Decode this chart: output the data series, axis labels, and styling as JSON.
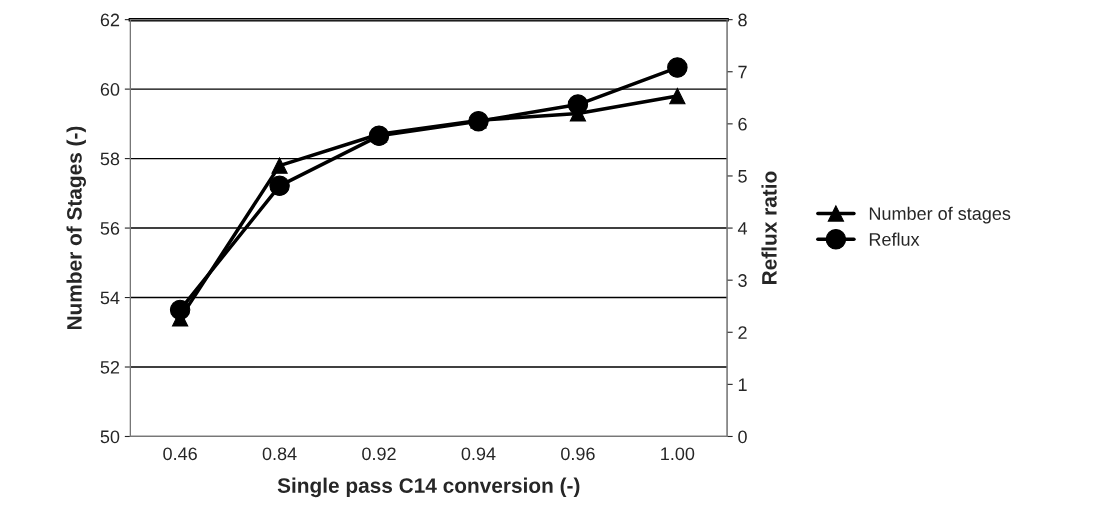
{
  "chart_data": {
    "type": "line",
    "xlabel": "Single pass C14 conversion (-)",
    "ylabel": "Number of Stages (-)",
    "y2label": "Reflux ratio",
    "categories": [
      "0.46",
      "0.84",
      "0.92",
      "0.94",
      "0.96",
      "1.00"
    ],
    "series": [
      {
        "name": "Number of stages",
        "color": "#000000",
        "marker": "triangle",
        "values": [
          53.4,
          57.8,
          58.7,
          59.1,
          59.3,
          59.8
        ]
      },
      {
        "name": "Reflux",
        "color": "#000000",
        "marker": "circle",
        "axis": "y2",
        "values": [
          2.43,
          4.81,
          5.77,
          6.05,
          6.37,
          7.08
        ]
      }
    ],
    "ylim": [
      50,
      62
    ],
    "yticks": [
      50,
      52,
      54,
      56,
      58,
      60,
      62
    ],
    "y2lim": [
      0,
      8
    ],
    "y2ticks": [
      0,
      1,
      2,
      3,
      4,
      5,
      6,
      7,
      8
    ],
    "grid": "y",
    "legend": "right",
    "line_style": "solid"
  }
}
